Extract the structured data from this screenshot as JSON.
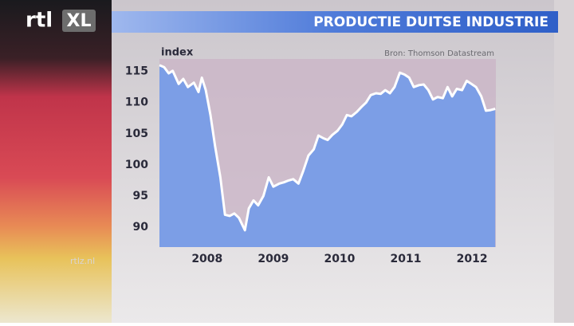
{
  "branding": {
    "logo_left": "rtl",
    "logo_right": "XL",
    "website": "rtlz.nl"
  },
  "chart_data": {
    "type": "line",
    "title": "PRODUCTIE DUITSE INDUSTRIE",
    "y_label": "index",
    "source": "Bron: Thomson Datastream",
    "x": [
      2007.78,
      2007.85,
      2007.92,
      2007.98,
      2008.07,
      2008.14,
      2008.21,
      2008.3,
      2008.37,
      2008.42,
      2008.48,
      2008.55,
      2008.62,
      2008.7,
      2008.77,
      2008.84,
      2008.91,
      2008.98,
      2009.07,
      2009.13,
      2009.2,
      2009.27,
      2009.35,
      2009.43,
      2009.5,
      2009.59,
      2009.66,
      2009.73,
      2009.8,
      2009.88,
      2009.95,
      2010.03,
      2010.11,
      2010.18,
      2010.25,
      2010.32,
      2010.39,
      2010.47,
      2010.54,
      2010.61,
      2010.68,
      2010.76,
      2010.83,
      2010.9,
      2010.97,
      2011.05,
      2011.12,
      2011.19,
      2011.26,
      2011.33,
      2011.41,
      2011.48,
      2011.55,
      2011.62,
      2011.7,
      2011.77,
      2011.84,
      2011.91,
      2011.98,
      2012.06,
      2012.13,
      2012.2,
      2012.27,
      2012.35,
      2012.42,
      2012.49,
      2012.56,
      2012.64,
      2012.71,
      2012.78,
      2012.85
    ],
    "series": [
      {
        "color": "#ffffff",
        "area_color": "#7c9ee6",
        "values": [
          116,
          115.7,
          114.7,
          115.1,
          113,
          113.8,
          112.5,
          113.2,
          111.7,
          114,
          112,
          108,
          103,
          98,
          92,
          91.8,
          92.2,
          91.5,
          89.5,
          93,
          94.3,
          93.5,
          95,
          98,
          96.5,
          97,
          97.2,
          97.5,
          97.7,
          97,
          99,
          101.5,
          102.5,
          104.7,
          104.3,
          104,
          104.8,
          105.5,
          106.5,
          108,
          107.8,
          108.5,
          109.3,
          110,
          111.2,
          111.5,
          111.4,
          112,
          111.5,
          112.5,
          114.8,
          114.5,
          114,
          112.5,
          112.8,
          112.9,
          112,
          110.5,
          110.9,
          110.7,
          112.5,
          111,
          112.2,
          112,
          113.5,
          113,
          112.5,
          111,
          108.7,
          108.8,
          109
        ]
      }
    ],
    "xlim": [
      2007.78,
      2012.86
    ],
    "ylim": [
      86.8,
      117
    ],
    "xticks": [
      {
        "value": 2008.5,
        "label": "2008"
      },
      {
        "value": 2009.5,
        "label": "2009"
      },
      {
        "value": 2010.5,
        "label": "2010"
      },
      {
        "value": 2011.5,
        "label": "2011"
      },
      {
        "value": 2012.5,
        "label": "2012"
      }
    ],
    "yticks": [
      90,
      95,
      100,
      105,
      110,
      115
    ],
    "grid": false
  }
}
